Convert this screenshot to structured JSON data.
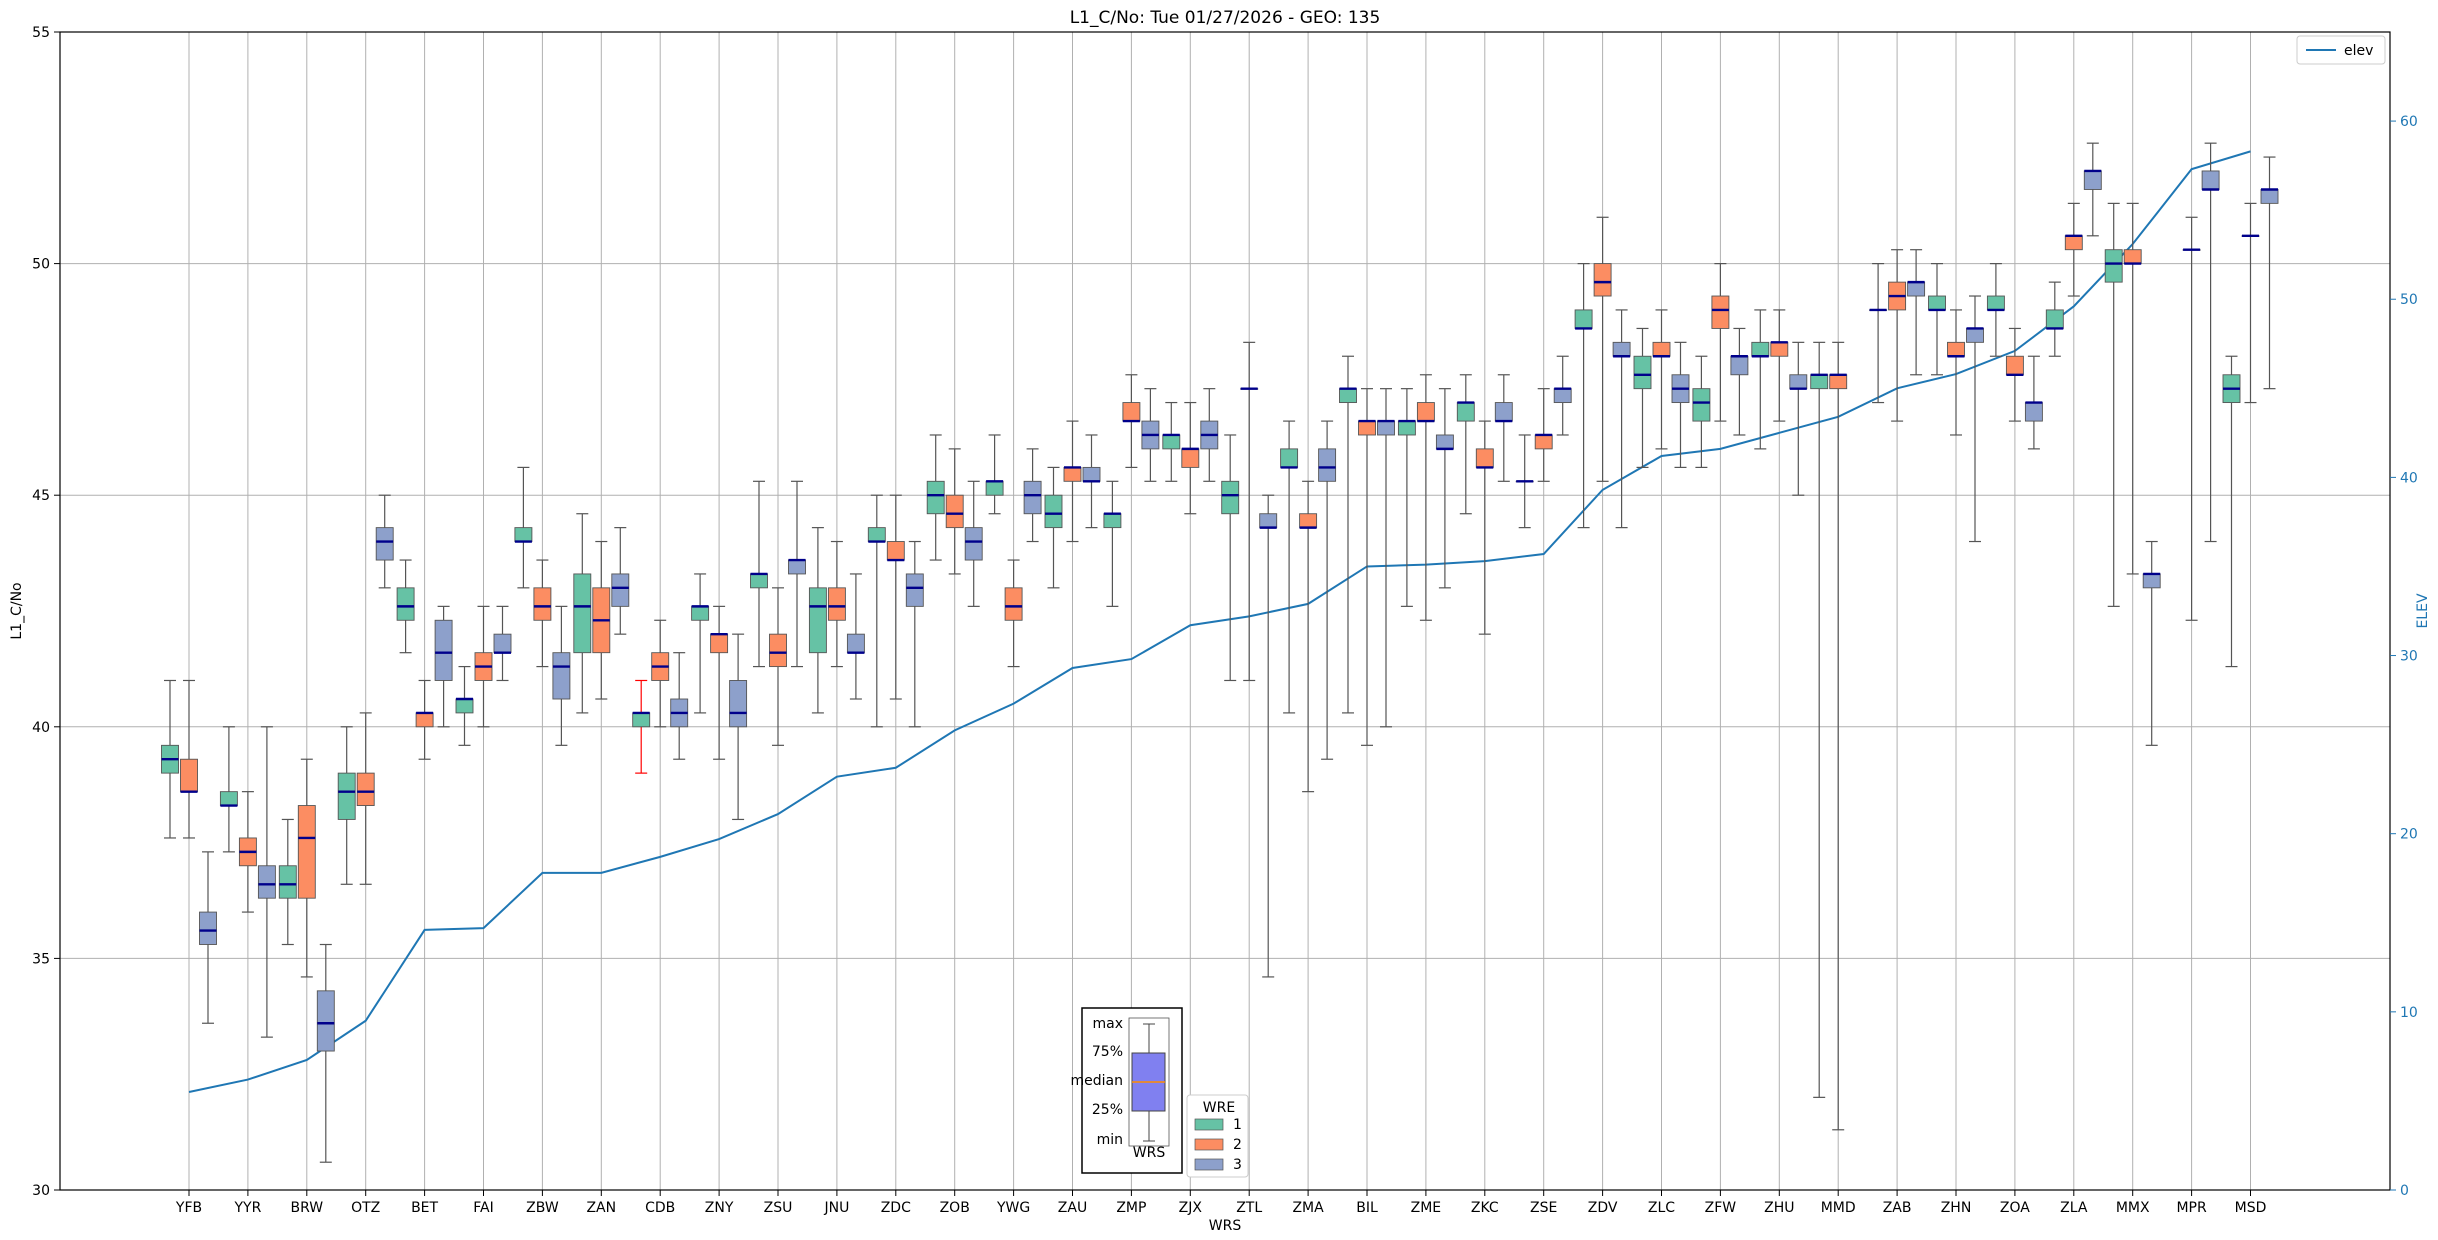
{
  "chart_data": {
    "type": "boxplot",
    "title": "L1_C/No: Tue 01/27/2026 - GEO: 135",
    "xlabel": "WRS",
    "ylabel": "L1_C/No",
    "y2label": "ELEV",
    "ylim": [
      30,
      55
    ],
    "y2lim": [
      0,
      65
    ],
    "yticks": [
      30,
      35,
      40,
      45,
      50,
      55
    ],
    "y2ticks": [
      0,
      10,
      20,
      30,
      40,
      50,
      60
    ],
    "grid": true,
    "colors": {
      "1": "#66c2a5",
      "2": "#fc8d62",
      "3": "#8da0cb",
      "elev": "#1f77b4",
      "median": "#00008b",
      "anomaly_whisker": "#ff0000"
    },
    "categories": [
      "YFB",
      "YYR",
      "BRW",
      "OTZ",
      "BET",
      "FAI",
      "ZBW",
      "ZAN",
      "CDB",
      "ZNY",
      "ZSU",
      "JNU",
      "ZDC",
      "ZOB",
      "YWG",
      "ZAU",
      "ZMP",
      "ZJX",
      "ZTL",
      "ZMA",
      "BIL",
      "ZME",
      "ZKC",
      "ZSE",
      "ZDV",
      "ZLC",
      "ZFW",
      "ZHU",
      "MMD",
      "ZAB",
      "ZHN",
      "ZOA",
      "ZLA",
      "MMX",
      "MPR",
      "MSD"
    ],
    "boxes": [
      {
        "site": "YFB",
        "wre": 1,
        "min": 37.6,
        "q1": 39.0,
        "median": 39.3,
        "q3": 39.6,
        "max": 41.0
      },
      {
        "site": "YFB",
        "wre": 2,
        "min": 37.6,
        "q1": 38.6,
        "median": 38.6,
        "q3": 39.3,
        "max": 41.0
      },
      {
        "site": "YYR",
        "wre": 1,
        "min": 37.3,
        "q1": 38.3,
        "median": 38.3,
        "q3": 38.6,
        "max": 40.0
      },
      {
        "site": "YYR",
        "wre": 2,
        "min": 36.0,
        "q1": 37.0,
        "median": 37.3,
        "q3": 37.6,
        "max": 38.6
      },
      {
        "site": "YYR",
        "wre": 3,
        "min": 33.3,
        "q1": 36.3,
        "median": 36.6,
        "q3": 37.0,
        "max": 40.0
      },
      {
        "site": "YFB",
        "wre": 3,
        "min": 33.6,
        "q1": 35.3,
        "median": 35.6,
        "q3": 36.0,
        "max": 37.3
      },
      {
        "site": "BRW",
        "wre": 1,
        "min": 35.3,
        "q1": 36.3,
        "median": 36.6,
        "q3": 37.0,
        "max": 38.0
      },
      {
        "site": "BRW",
        "wre": 2,
        "min": 34.6,
        "q1": 36.3,
        "median": 37.6,
        "q3": 38.3,
        "max": 39.3
      },
      {
        "site": "BRW",
        "wre": 3,
        "min": 30.6,
        "q1": 33.0,
        "median": 33.6,
        "q3": 34.3,
        "max": 35.3
      },
      {
        "site": "OTZ",
        "wre": 1,
        "min": 36.6,
        "q1": 38.0,
        "median": 38.6,
        "q3": 39.0,
        "max": 40.0
      },
      {
        "site": "OTZ",
        "wre": 2,
        "min": 36.6,
        "q1": 38.3,
        "median": 38.6,
        "q3": 39.0,
        "max": 40.3
      },
      {
        "site": "OTZ",
        "wre": 3,
        "min": 43.0,
        "q1": 43.6,
        "median": 44.0,
        "q3": 44.3,
        "max": 45.0
      },
      {
        "site": "BET",
        "wre": 1,
        "min": 41.6,
        "q1": 42.3,
        "median": 42.6,
        "q3": 43.0,
        "max": 43.6
      },
      {
        "site": "BET",
        "wre": 2,
        "min": 39.3,
        "q1": 40.0,
        "median": 40.3,
        "q3": 40.3,
        "max": 41.0
      },
      {
        "site": "BET",
        "wre": 3,
        "min": 40.0,
        "q1": 41.0,
        "median": 41.6,
        "q3": 42.3,
        "max": 42.6
      },
      {
        "site": "FAI",
        "wre": 1,
        "min": 39.6,
        "q1": 40.3,
        "median": 40.6,
        "q3": 40.6,
        "max": 41.3
      },
      {
        "site": "FAI",
        "wre": 2,
        "min": 40.0,
        "q1": 41.0,
        "median": 41.3,
        "q3": 41.6,
        "max": 42.6
      },
      {
        "site": "FAI",
        "wre": 3,
        "min": 41.0,
        "q1": 41.6,
        "median": 41.6,
        "q3": 42.0,
        "max": 42.6
      },
      {
        "site": "ZBW",
        "wre": 1,
        "min": 43.0,
        "q1": 44.0,
        "median": 44.0,
        "q3": 44.3,
        "max": 45.6
      },
      {
        "site": "ZBW",
        "wre": 2,
        "min": 41.3,
        "q1": 42.3,
        "median": 42.6,
        "q3": 43.0,
        "max": 43.6
      },
      {
        "site": "ZBW",
        "wre": 3,
        "min": 39.6,
        "q1": 40.6,
        "median": 41.3,
        "q3": 41.6,
        "max": 42.6
      },
      {
        "site": "ZAN",
        "wre": 1,
        "min": 40.3,
        "q1": 41.6,
        "median": 42.6,
        "q3": 43.3,
        "max": 44.6
      },
      {
        "site": "ZAN",
        "wre": 2,
        "min": 40.6,
        "q1": 41.6,
        "median": 42.3,
        "q3": 43.0,
        "max": 44.0
      },
      {
        "site": "ZAN",
        "wre": 3,
        "min": 42.0,
        "q1": 42.6,
        "median": 43.0,
        "q3": 43.3,
        "max": 44.3
      },
      {
        "site": "CDB",
        "wre": 1,
        "min": 39.0,
        "q1": 40.0,
        "median": 40.3,
        "q3": 40.3,
        "max": 41.0,
        "whisker_color": "red"
      },
      {
        "site": "CDB",
        "wre": 2,
        "min": 40.0,
        "q1": 41.0,
        "median": 41.3,
        "q3": 41.6,
        "max": 42.3
      },
      {
        "site": "CDB",
        "wre": 3,
        "min": 39.3,
        "q1": 40.0,
        "median": 40.3,
        "q3": 40.6,
        "max": 41.6
      },
      {
        "site": "ZNY",
        "wre": 1,
        "min": 40.3,
        "q1": 42.3,
        "median": 42.6,
        "q3": 42.6,
        "max": 43.3
      },
      {
        "site": "ZNY",
        "wre": 2,
        "min": 39.3,
        "q1": 41.6,
        "median": 42.0,
        "q3": 42.0,
        "max": 42.6
      },
      {
        "site": "ZNY",
        "wre": 3,
        "min": 38.0,
        "q1": 40.0,
        "median": 40.3,
        "q3": 41.0,
        "max": 42.0
      },
      {
        "site": "ZSU",
        "wre": 1,
        "min": 41.3,
        "q1": 43.0,
        "median": 43.3,
        "q3": 43.3,
        "max": 45.3
      },
      {
        "site": "ZSU",
        "wre": 2,
        "min": 39.6,
        "q1": 41.3,
        "median": 41.6,
        "q3": 42.0,
        "max": 43.0
      },
      {
        "site": "ZSU",
        "wre": 3,
        "min": 41.3,
        "q1": 43.3,
        "median": 43.6,
        "q3": 43.6,
        "max": 45.3
      },
      {
        "site": "JNU",
        "wre": 1,
        "min": 40.3,
        "q1": 41.6,
        "median": 42.6,
        "q3": 43.0,
        "max": 44.3
      },
      {
        "site": "JNU",
        "wre": 2,
        "min": 41.3,
        "q1": 42.3,
        "median": 42.6,
        "q3": 43.0,
        "max": 44.0
      },
      {
        "site": "JNU",
        "wre": 3,
        "min": 40.6,
        "q1": 41.6,
        "median": 41.6,
        "q3": 42.0,
        "max": 43.3
      },
      {
        "site": "ZDC",
        "wre": 1,
        "min": 40.0,
        "q1": 44.0,
        "median": 44.0,
        "q3": 44.3,
        "max": 45.0
      },
      {
        "site": "ZDC",
        "wre": 2,
        "min": 40.6,
        "q1": 43.6,
        "median": 43.6,
        "q3": 44.0,
        "max": 45.0
      },
      {
        "site": "ZDC",
        "wre": 3,
        "min": 40.0,
        "q1": 42.6,
        "median": 43.0,
        "q3": 43.3,
        "max": 44.0
      },
      {
        "site": "ZOB",
        "wre": 1,
        "min": 43.6,
        "q1": 44.6,
        "median": 45.0,
        "q3": 45.3,
        "max": 46.3
      },
      {
        "site": "ZOB",
        "wre": 2,
        "min": 43.3,
        "q1": 44.3,
        "median": 44.6,
        "q3": 45.0,
        "max": 46.0
      },
      {
        "site": "ZOB",
        "wre": 3,
        "min": 42.6,
        "q1": 43.6,
        "median": 44.0,
        "q3": 44.3,
        "max": 45.3
      },
      {
        "site": "YWG",
        "wre": 1,
        "min": 44.6,
        "q1": 45.0,
        "median": 45.3,
        "q3": 45.3,
        "max": 46.3
      },
      {
        "site": "YWG",
        "wre": 2,
        "min": 41.3,
        "q1": 42.3,
        "median": 42.6,
        "q3": 43.0,
        "max": 43.6
      },
      {
        "site": "YWG",
        "wre": 3,
        "min": 44.0,
        "q1": 44.6,
        "median": 45.0,
        "q3": 45.3,
        "max": 46.0
      },
      {
        "site": "ZAU",
        "wre": 1,
        "min": 43.0,
        "q1": 44.3,
        "median": 44.6,
        "q3": 45.0,
        "max": 45.6
      },
      {
        "site": "ZAU",
        "wre": 2,
        "min": 44.0,
        "q1": 45.3,
        "median": 45.6,
        "q3": 45.6,
        "max": 46.6
      },
      {
        "site": "ZAU",
        "wre": 3,
        "min": 44.3,
        "q1": 45.3,
        "median": 45.3,
        "q3": 45.6,
        "max": 46.3
      },
      {
        "site": "ZMP",
        "wre": 1,
        "min": 42.6,
        "q1": 44.3,
        "median": 44.6,
        "q3": 44.6,
        "max": 45.3
      },
      {
        "site": "ZMP",
        "wre": 2,
        "min": 45.6,
        "q1": 46.6,
        "median": 46.6,
        "q3": 47.0,
        "max": 47.6
      },
      {
        "site": "ZMP",
        "wre": 3,
        "min": 45.3,
        "q1": 46.0,
        "median": 46.3,
        "q3": 46.6,
        "max": 47.3
      },
      {
        "site": "ZJX",
        "wre": 1,
        "min": 45.3,
        "q1": 46.0,
        "median": 46.3,
        "q3": 46.3,
        "max": 47.0
      },
      {
        "site": "ZJX",
        "wre": 2,
        "min": 44.6,
        "q1": 45.6,
        "median": 46.0,
        "q3": 46.0,
        "max": 47.0
      },
      {
        "site": "ZJX",
        "wre": 3,
        "min": 45.3,
        "q1": 46.0,
        "median": 46.3,
        "q3": 46.6,
        "max": 47.3
      },
      {
        "site": "ZTL",
        "wre": 1,
        "min": 41.0,
        "q1": 44.6,
        "median": 45.0,
        "q3": 45.3,
        "max": 46.3
      },
      {
        "site": "ZTL",
        "wre": 2,
        "min": 41.0,
        "q1": 47.3,
        "median": 47.3,
        "q3": 47.3,
        "max": 48.3
      },
      {
        "site": "ZTL",
        "wre": 3,
        "min": 34.6,
        "q1": 44.3,
        "median": 44.3,
        "q3": 44.6,
        "max": 45.0
      },
      {
        "site": "ZMA",
        "wre": 1,
        "min": 40.3,
        "q1": 45.6,
        "median": 45.6,
        "q3": 46.0,
        "max": 46.6
      },
      {
        "site": "ZMA",
        "wre": 2,
        "min": 38.6,
        "q1": 44.3,
        "median": 44.3,
        "q3": 44.6,
        "max": 45.3
      },
      {
        "site": "ZMA",
        "wre": 3,
        "min": 39.3,
        "q1": 45.3,
        "median": 45.6,
        "q3": 46.0,
        "max": 46.6
      },
      {
        "site": "BIL",
        "wre": 1,
        "min": 40.3,
        "q1": 47.0,
        "median": 47.3,
        "q3": 47.3,
        "max": 48.0
      },
      {
        "site": "BIL",
        "wre": 2,
        "min": 39.6,
        "q1": 46.3,
        "median": 46.6,
        "q3": 46.6,
        "max": 47.3
      },
      {
        "site": "BIL",
        "wre": 3,
        "min": 40.0,
        "q1": 46.3,
        "median": 46.6,
        "q3": 46.6,
        "max": 47.3
      },
      {
        "site": "ZME",
        "wre": 1,
        "min": 42.6,
        "q1": 46.3,
        "median": 46.6,
        "q3": 46.6,
        "max": 47.3
      },
      {
        "site": "ZME",
        "wre": 2,
        "min": 42.3,
        "q1": 46.6,
        "median": 46.6,
        "q3": 47.0,
        "max": 47.6
      },
      {
        "site": "ZME",
        "wre": 3,
        "min": 43.0,
        "q1": 46.0,
        "median": 46.0,
        "q3": 46.3,
        "max": 47.3
      },
      {
        "site": "ZKC",
        "wre": 1,
        "min": 44.6,
        "q1": 46.6,
        "median": 47.0,
        "q3": 47.0,
        "max": 47.6
      },
      {
        "site": "ZKC",
        "wre": 2,
        "min": 42.0,
        "q1": 45.6,
        "median": 45.6,
        "q3": 46.0,
        "max": 46.6
      },
      {
        "site": "ZKC",
        "wre": 3,
        "min": 45.3,
        "q1": 46.6,
        "median": 46.6,
        "q3": 47.0,
        "max": 47.6
      },
      {
        "site": "ZSE",
        "wre": 1,
        "min": 44.3,
        "q1": 45.3,
        "median": 45.3,
        "q3": 45.3,
        "max": 46.3
      },
      {
        "site": "ZSE",
        "wre": 2,
        "min": 45.3,
        "q1": 46.0,
        "median": 46.3,
        "q3": 46.3,
        "max": 47.3
      },
      {
        "site": "ZSE",
        "wre": 3,
        "min": 46.3,
        "q1": 47.0,
        "median": 47.3,
        "q3": 47.3,
        "max": 48.0
      },
      {
        "site": "ZDV",
        "wre": 1,
        "min": 44.3,
        "q1": 48.6,
        "median": 48.6,
        "q3": 49.0,
        "max": 50.0
      },
      {
        "site": "ZDV",
        "wre": 2,
        "min": 45.3,
        "q1": 49.3,
        "median": 49.6,
        "q3": 50.0,
        "max": 51.0
      },
      {
        "site": "ZDV",
        "wre": 3,
        "min": 44.3,
        "q1": 48.0,
        "median": 48.0,
        "q3": 48.3,
        "max": 49.0
      },
      {
        "site": "ZLC",
        "wre": 1,
        "min": 45.6,
        "q1": 47.3,
        "median": 47.6,
        "q3": 48.0,
        "max": 48.6
      },
      {
        "site": "ZLC",
        "wre": 2,
        "min": 46.0,
        "q1": 48.0,
        "median": 48.0,
        "q3": 48.3,
        "max": 49.0
      },
      {
        "site": "ZLC",
        "wre": 3,
        "min": 45.6,
        "q1": 47.0,
        "median": 47.3,
        "q3": 47.6,
        "max": 48.3
      },
      {
        "site": "ZFW",
        "wre": 1,
        "min": 45.6,
        "q1": 46.6,
        "median": 47.0,
        "q3": 47.3,
        "max": 48.0
      },
      {
        "site": "ZFW",
        "wre": 2,
        "min": 46.6,
        "q1": 48.6,
        "median": 49.0,
        "q3": 49.3,
        "max": 50.0
      },
      {
        "site": "ZFW",
        "wre": 3,
        "min": 46.3,
        "q1": 47.6,
        "median": 48.0,
        "q3": 48.0,
        "max": 48.6
      },
      {
        "site": "ZHU",
        "wre": 1,
        "min": 46.0,
        "q1": 48.0,
        "median": 48.0,
        "q3": 48.3,
        "max": 49.0
      },
      {
        "site": "ZHU",
        "wre": 2,
        "min": 46.6,
        "q1": 48.0,
        "median": 48.3,
        "q3": 48.3,
        "max": 49.0
      },
      {
        "site": "ZHU",
        "wre": 3,
        "min": 45.0,
        "q1": 47.3,
        "median": 47.3,
        "q3": 47.6,
        "max": 48.3
      },
      {
        "site": "MMD",
        "wre": 1,
        "min": 32.0,
        "q1": 47.3,
        "median": 47.6,
        "q3": 47.6,
        "max": 48.3
      },
      {
        "site": "MMD",
        "wre": 2,
        "min": 31.3,
        "q1": 47.3,
        "median": 47.6,
        "q3": 47.6,
        "max": 48.3
      },
      {
        "site": "ZAB",
        "wre": 1,
        "min": 47.0,
        "q1": 49.0,
        "median": 49.0,
        "q3": 49.0,
        "max": 50.0
      },
      {
        "site": "ZAB",
        "wre": 2,
        "min": 46.6,
        "q1": 49.0,
        "median": 49.3,
        "q3": 49.6,
        "max": 50.3
      },
      {
        "site": "ZAB",
        "wre": 3,
        "min": 47.6,
        "q1": 49.3,
        "median": 49.6,
        "q3": 49.6,
        "max": 50.3
      },
      {
        "site": "ZHN",
        "wre": 1,
        "min": 47.6,
        "q1": 49.0,
        "median": 49.0,
        "q3": 49.3,
        "max": 50.0
      },
      {
        "site": "ZHN",
        "wre": 2,
        "min": 46.3,
        "q1": 48.0,
        "median": 48.0,
        "q3": 48.3,
        "max": 49.0
      },
      {
        "site": "ZHN",
        "wre": 3,
        "min": 44.0,
        "q1": 48.3,
        "median": 48.6,
        "q3": 48.6,
        "max": 49.3
      },
      {
        "site": "ZOA",
        "wre": 1,
        "min": 48.0,
        "q1": 49.0,
        "median": 49.0,
        "q3": 49.3,
        "max": 50.0
      },
      {
        "site": "ZOA",
        "wre": 2,
        "min": 46.6,
        "q1": 47.6,
        "median": 47.6,
        "q3": 48.0,
        "max": 48.6
      },
      {
        "site": "ZOA",
        "wre": 3,
        "min": 46.0,
        "q1": 46.6,
        "median": 47.0,
        "q3": 47.0,
        "max": 48.0
      },
      {
        "site": "ZLA",
        "wre": 1,
        "min": 48.0,
        "q1": 48.6,
        "median": 48.6,
        "q3": 49.0,
        "max": 49.6
      },
      {
        "site": "ZLA",
        "wre": 2,
        "min": 49.3,
        "q1": 50.3,
        "median": 50.6,
        "q3": 50.6,
        "max": 51.3
      },
      {
        "site": "ZLA",
        "wre": 3,
        "min": 50.6,
        "q1": 51.6,
        "median": 52.0,
        "q3": 52.0,
        "max": 52.6
      },
      {
        "site": "MMX",
        "wre": 1,
        "min": 42.6,
        "q1": 49.6,
        "median": 50.0,
        "q3": 50.3,
        "max": 51.3
      },
      {
        "site": "MMX",
        "wre": 2,
        "min": 43.3,
        "q1": 50.0,
        "median": 50.0,
        "q3": 50.3,
        "max": 51.3
      },
      {
        "site": "MMX",
        "wre": 3,
        "min": 39.6,
        "q1": 43.0,
        "median": 43.3,
        "q3": 43.3,
        "max": 44.0
      },
      {
        "site": "MPR",
        "wre": 2,
        "min": 42.3,
        "q1": 50.3,
        "median": 50.3,
        "q3": 50.3,
        "max": 51.0
      },
      {
        "site": "MPR",
        "wre": 3,
        "min": 44.0,
        "q1": 51.6,
        "median": 51.6,
        "q3": 52.0,
        "max": 52.6
      },
      {
        "site": "MSD",
        "wre": 1,
        "min": 41.3,
        "q1": 47.0,
        "median": 47.3,
        "q3": 47.6,
        "max": 48.0
      },
      {
        "site": "MSD",
        "wre": 2,
        "min": 47.0,
        "q1": 50.6,
        "median": 50.6,
        "q3": 50.6,
        "max": 51.3
      },
      {
        "site": "MSD",
        "wre": 3,
        "min": 47.3,
        "q1": 51.3,
        "median": 51.6,
        "q3": 51.6,
        "max": 52.3
      }
    ],
    "elev_series": {
      "name": "elev",
      "axis": "right",
      "values": [
        5.5,
        6.2,
        7.3,
        9.5,
        14.6,
        14.7,
        17.8,
        17.8,
        18.7,
        19.7,
        21.1,
        23.2,
        23.7,
        25.8,
        27.3,
        29.3,
        29.8,
        31.7,
        32.2,
        32.9,
        35.0,
        35.1,
        35.3,
        35.7,
        39.3,
        41.2,
        41.6,
        42.5,
        43.4,
        45.0,
        45.8,
        47.1,
        49.6,
        53.1,
        57.3,
        58.3
      ]
    },
    "legend_elev": {
      "label": "elev",
      "placement": "top-right"
    },
    "legend_wre": {
      "title": "WRE",
      "entries": [
        "1",
        "2",
        "3"
      ],
      "placement": "bottom-center"
    },
    "key_box": {
      "labels": [
        "max",
        "75%",
        "median",
        "25%",
        "min"
      ],
      "caption": "WRS"
    }
  }
}
